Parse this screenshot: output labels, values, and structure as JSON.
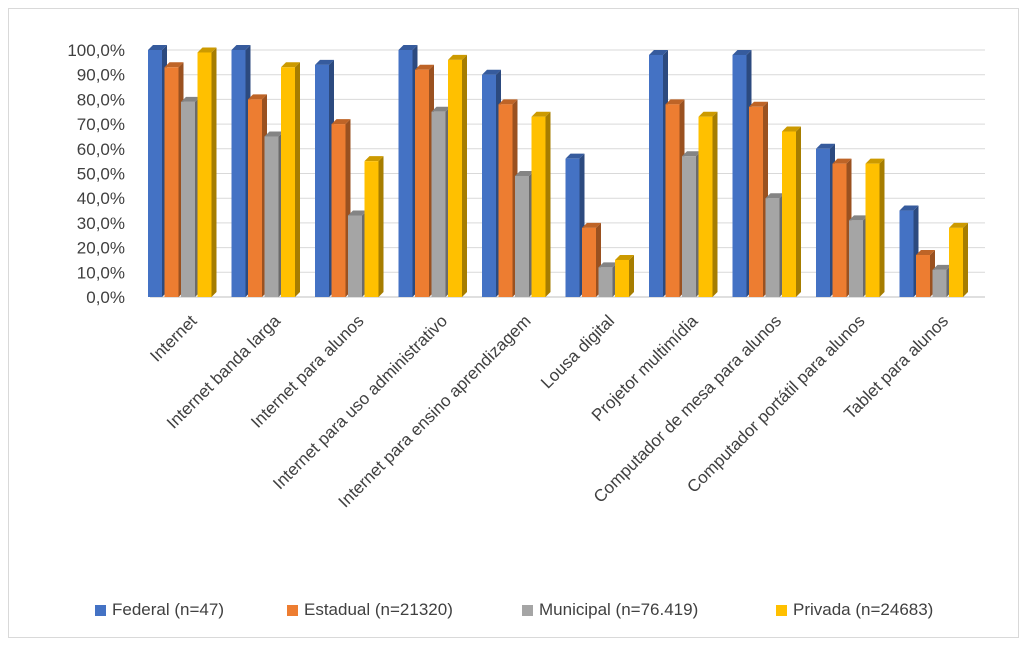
{
  "chart_data": {
    "type": "bar",
    "title": "",
    "xlabel": "",
    "ylabel": "",
    "ylim": [
      0,
      100
    ],
    "y_ticks": [
      "0,0%",
      "10,0%",
      "20,0%",
      "30,0%",
      "40,0%",
      "50,0%",
      "60,0%",
      "70,0%",
      "80,0%",
      "90,0%",
      "100,0%"
    ],
    "grid": true,
    "legend_position": "bottom",
    "categories": [
      "Internet",
      "Internet banda larga",
      "Internet para alunos",
      "Internet para uso administrativo",
      "Internet para ensino aprendizagem",
      "Lousa digital",
      "Projetor multimídia",
      "Computador de mesa para alunos",
      "Computador portátil para alunos",
      "Tablet para alunos"
    ],
    "series": [
      {
        "name": "Federal (n=47)",
        "color": "#4472c4",
        "values": [
          100,
          100,
          94,
          100,
          90,
          56,
          98,
          98,
          60,
          35
        ]
      },
      {
        "name": "Estadual (n=21320)",
        "color": "#ed7d31",
        "values": [
          93,
          80,
          70,
          92,
          78,
          28,
          78,
          77,
          54,
          17
        ]
      },
      {
        "name": "Municipal (n=76.419)",
        "color": "#a5a5a5",
        "values": [
          79,
          65,
          33,
          75,
          49,
          12,
          57,
          40,
          31,
          11
        ]
      },
      {
        "name": "Privada (n=24683)",
        "color": "#ffc000",
        "values": [
          99,
          93,
          55,
          96,
          73,
          15,
          73,
          67,
          54,
          28
        ]
      }
    ]
  }
}
